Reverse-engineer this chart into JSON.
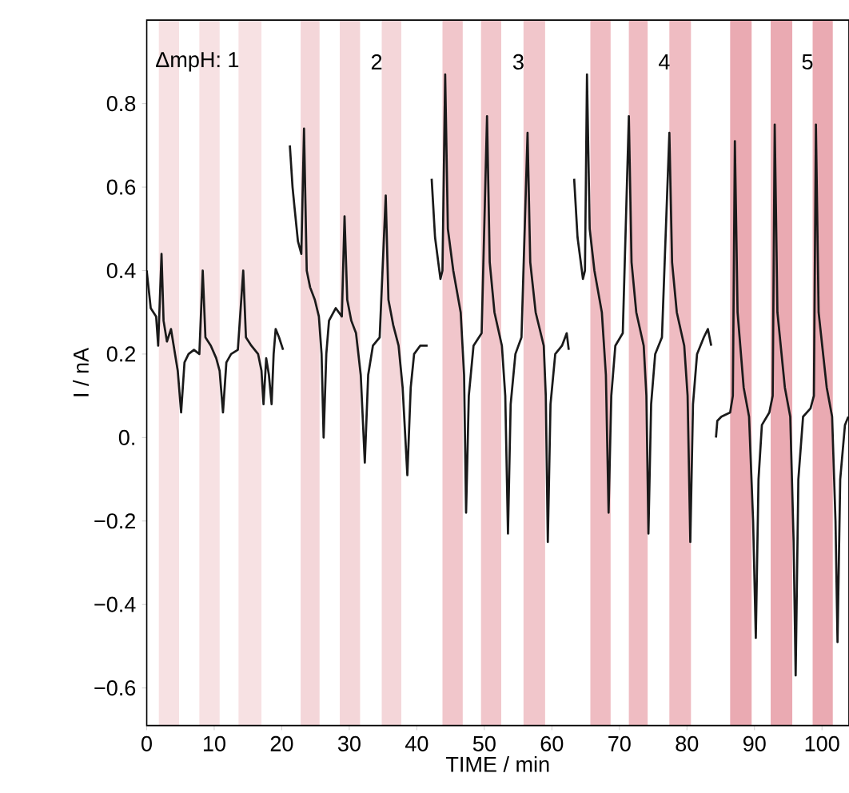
{
  "chart_data": {
    "type": "line",
    "xlabel": "TIME / min",
    "ylabel": "I / nA",
    "xlim": [
      0,
      104
    ],
    "ylim": [
      -0.69,
      1.0
    ],
    "xticks": [
      0,
      10,
      20,
      30,
      40,
      50,
      60,
      70,
      80,
      90,
      100
    ],
    "yticks": [
      {
        "value": -0.6,
        "label": "−0.6"
      },
      {
        "value": -0.4,
        "label": "−0.4"
      },
      {
        "value": -0.2,
        "label": "−0.2"
      },
      {
        "value": 0,
        "label": "0."
      },
      0.2,
      0.4,
      0.6,
      0.8
    ],
    "bands": [
      {
        "axis": "x",
        "from": 1.8,
        "to": 4.8,
        "color": "#f7e1e3"
      },
      {
        "axis": "x",
        "from": 7.8,
        "to": 10.8,
        "color": "#f7e1e3"
      },
      {
        "axis": "x",
        "from": 13.6,
        "to": 17.0,
        "color": "#f7e1e3"
      },
      {
        "axis": "x",
        "from": 22.8,
        "to": 25.6,
        "color": "#f4d6d9"
      },
      {
        "axis": "x",
        "from": 28.6,
        "to": 31.6,
        "color": "#f4d6d9"
      },
      {
        "axis": "x",
        "from": 34.8,
        "to": 37.7,
        "color": "#f4d6d9"
      },
      {
        "axis": "x",
        "from": 43.8,
        "to": 46.8,
        "color": "#f1c6cb"
      },
      {
        "axis": "x",
        "from": 49.5,
        "to": 52.5,
        "color": "#f1c6cb"
      },
      {
        "axis": "x",
        "from": 55.8,
        "to": 59.0,
        "color": "#f1c6cb"
      },
      {
        "axis": "x",
        "from": 65.7,
        "to": 68.7,
        "color": "#efbcc2"
      },
      {
        "axis": "x",
        "from": 71.4,
        "to": 74.2,
        "color": "#efbcc2"
      },
      {
        "axis": "x",
        "from": 77.4,
        "to": 80.6,
        "color": "#efbcc2"
      },
      {
        "axis": "x",
        "from": 86.4,
        "to": 89.6,
        "color": "#eaaab2"
      },
      {
        "axis": "x",
        "from": 92.4,
        "to": 95.6,
        "color": "#eaaab2"
      },
      {
        "axis": "x",
        "from": 98.6,
        "to": 101.6,
        "color": "#eaaab2"
      }
    ],
    "annotations": [
      "ΔmpH: 1",
      "2",
      "3",
      "4",
      "5"
    ],
    "marker": "none",
    "line_style": "solid",
    "series": [
      {
        "color": "#1a1a1a",
        "x": [
          0,
          0.6,
          1.4,
          1.7,
          2.2,
          2.5,
          3.0,
          3.6,
          4.2,
          4.6,
          5.1,
          5.6,
          6.2,
          7.0,
          7.8,
          8.3,
          8.7,
          9.5,
          10.3,
          10.8,
          11.3,
          11.8,
          12.5,
          13.5,
          14.3,
          14.7,
          15.5,
          16.5,
          17.0,
          17.3,
          17.7,
          18.1,
          18.5,
          18.8,
          19.1,
          19.6,
          20.2,
          20.8,
          21.2,
          21.6,
          21.9,
          22.4,
          22.9,
          23.3,
          23.7,
          24.2,
          24.9,
          25.5,
          25.9,
          26.2,
          26.6,
          27.0,
          28.0,
          28.9,
          29.3,
          29.7,
          30.3,
          31.0,
          31.7,
          32.3,
          32.8,
          33.5,
          34.5,
          35.4,
          35.8,
          36.5,
          37.3,
          37.9,
          38.6,
          39.1,
          39.6,
          40.5,
          41.6,
          41.9,
          42.2,
          42.7,
          43.5,
          43.8,
          44.2,
          44.6,
          45.4,
          46.5,
          47.0,
          47.3,
          47.7,
          48.4,
          49.6,
          50.4,
          50.8,
          51.5,
          52.6,
          53.1,
          53.5,
          53.9,
          54.6,
          55.5,
          56.4,
          56.8,
          57.6,
          58.8,
          59.1,
          59.4,
          59.8,
          60.5,
          61.5,
          62.2,
          62.5,
          62.9,
          63.3,
          63.8,
          64.6,
          64.9,
          65.2,
          65.6,
          66.3,
          67.4,
          68.0,
          68.4,
          68.8,
          69.4,
          70.5,
          71.4,
          71.8,
          72.5,
          73.6,
          74.0,
          74.3,
          74.7,
          75.3,
          76.3,
          77.4,
          77.8,
          78.5,
          79.6,
          80.1,
          80.5,
          80.9,
          81.5,
          82.5,
          83.1,
          83.6,
          84.0,
          84.3,
          84.5,
          85.1,
          86.4,
          86.8,
          87.1,
          87.5,
          88.4,
          89.2,
          89.8,
          90.2,
          90.6,
          91.1,
          92.2,
          92.7,
          93.0,
          93.4,
          94.5,
          95.3,
          95.8,
          96.1,
          96.5,
          97.2,
          98.3,
          98.8,
          99.1,
          99.5,
          100.7,
          101.5,
          102.0,
          102.3,
          102.7,
          103.4,
          103.9
        ],
        "values": [
          0.4,
          0.31,
          0.29,
          0.22,
          0.44,
          0.28,
          0.23,
          0.26,
          0.2,
          0.16,
          0.06,
          0.18,
          0.2,
          0.21,
          0.2,
          0.4,
          0.24,
          0.22,
          0.19,
          0.16,
          0.06,
          0.18,
          0.2,
          0.21,
          0.4,
          0.24,
          0.22,
          0.2,
          0.16,
          0.08,
          0.19,
          0.15,
          0.08,
          0.2,
          0.26,
          0.24,
          0.21,
          null,
          0.7,
          0.6,
          0.55,
          0.47,
          0.44,
          0.74,
          0.4,
          0.36,
          0.33,
          0.29,
          0.2,
          0.0,
          0.2,
          0.28,
          0.31,
          0.29,
          0.53,
          0.33,
          0.28,
          0.25,
          0.15,
          -0.06,
          0.15,
          0.22,
          0.24,
          0.58,
          0.33,
          0.27,
          0.22,
          0.12,
          -0.09,
          0.12,
          0.2,
          0.22,
          0.22,
          null,
          0.62,
          0.48,
          0.38,
          0.4,
          0.87,
          0.5,
          0.4,
          0.3,
          0.15,
          -0.18,
          0.1,
          0.22,
          0.25,
          0.77,
          0.42,
          0.3,
          0.22,
          0.1,
          -0.23,
          0.08,
          0.2,
          0.24,
          0.73,
          0.42,
          0.3,
          0.22,
          0.1,
          -0.25,
          0.08,
          0.2,
          0.22,
          0.25,
          0.21,
          null,
          0.62,
          0.48,
          0.38,
          0.4,
          0.87,
          0.5,
          0.4,
          0.3,
          0.15,
          -0.18,
          0.1,
          0.22,
          0.25,
          0.77,
          0.42,
          0.3,
          0.22,
          0.1,
          -0.23,
          0.08,
          0.2,
          0.24,
          0.73,
          0.42,
          0.3,
          0.22,
          0.1,
          -0.25,
          0.08,
          0.2,
          0.24,
          0.26,
          0.22,
          null,
          0.0,
          0.04,
          0.05,
          0.06,
          0.1,
          0.71,
          0.3,
          0.12,
          0.05,
          -0.2,
          -0.48,
          -0.1,
          0.03,
          0.06,
          0.1,
          0.75,
          0.3,
          0.12,
          0.05,
          -0.25,
          -0.57,
          -0.1,
          0.05,
          0.07,
          0.1,
          0.75,
          0.3,
          0.12,
          0.05,
          -0.2,
          -0.49,
          -0.1,
          0.03,
          0.05
        ]
      }
    ]
  }
}
